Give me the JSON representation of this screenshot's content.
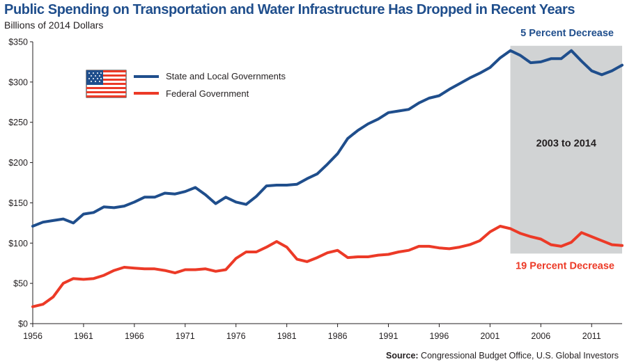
{
  "chart_data": {
    "type": "line",
    "title": "Public Spending on Transportation and Water Infrastructure Has Dropped in Recent Years",
    "subtitle": "Billions of 2014 Dollars",
    "source_label": "Source:",
    "source_text": "Congressional Budget Office, U.S. Global Investors",
    "xlim": [
      1956,
      2014
    ],
    "ylim": [
      0,
      350
    ],
    "x_ticks": [
      1956,
      1961,
      1966,
      1971,
      1976,
      1981,
      1986,
      1991,
      1996,
      2001,
      2006,
      2011
    ],
    "y_ticks": [
      "$0",
      "$50",
      "$100",
      "$150",
      "$200",
      "$250",
      "$300",
      "$350"
    ],
    "y_tick_values": [
      0,
      50,
      100,
      150,
      200,
      250,
      300,
      350
    ],
    "grid": false,
    "legend_position": "top-left",
    "legend_flag": "us-flag-icon",
    "shaded_region": {
      "x_start": 2003,
      "x_end": 2014,
      "label": "2003 to 2014",
      "color": "#d1d3d4"
    },
    "x": [
      1956,
      1957,
      1958,
      1959,
      1960,
      1961,
      1962,
      1963,
      1964,
      1965,
      1966,
      1967,
      1968,
      1969,
      1970,
      1971,
      1972,
      1973,
      1974,
      1975,
      1976,
      1977,
      1978,
      1979,
      1980,
      1981,
      1982,
      1983,
      1984,
      1985,
      1986,
      1987,
      1988,
      1989,
      1990,
      1991,
      1992,
      1993,
      1994,
      1995,
      1996,
      1997,
      1998,
      1999,
      2000,
      2001,
      2002,
      2003,
      2004,
      2005,
      2006,
      2007,
      2008,
      2009,
      2010,
      2011,
      2012,
      2013,
      2014
    ],
    "series": [
      {
        "name": "State and Local Governments",
        "color": "#1f4e8c",
        "annotation": "5 Percent Decrease",
        "values": [
          121,
          126,
          128,
          130,
          125,
          136,
          138,
          145,
          144,
          146,
          151,
          157,
          157,
          162,
          161,
          164,
          169,
          160,
          149,
          157,
          151,
          148,
          158,
          171,
          172,
          172,
          173,
          180,
          186,
          198,
          211,
          230,
          240,
          248,
          254,
          262,
          264,
          266,
          274,
          280,
          283,
          291,
          298,
          305,
          311,
          318,
          330,
          339,
          333,
          324,
          325,
          329,
          329,
          339,
          326,
          314,
          309,
          314,
          321
        ]
      },
      {
        "name": "Federal Government",
        "color": "#ec3a27",
        "annotation": "19 Percent Decrease",
        "values": [
          21,
          24,
          33,
          50,
          56,
          55,
          56,
          60,
          66,
          70,
          69,
          68,
          68,
          66,
          63,
          67,
          67,
          68,
          65,
          67,
          81,
          89,
          89,
          95,
          102,
          95,
          80,
          77,
          82,
          88,
          91,
          82,
          83,
          83,
          85,
          86,
          89,
          91,
          96,
          96,
          94,
          93,
          95,
          98,
          103,
          114,
          121,
          118,
          112,
          108,
          105,
          98,
          96,
          101,
          113,
          108,
          103,
          98,
          97
        ]
      }
    ]
  }
}
